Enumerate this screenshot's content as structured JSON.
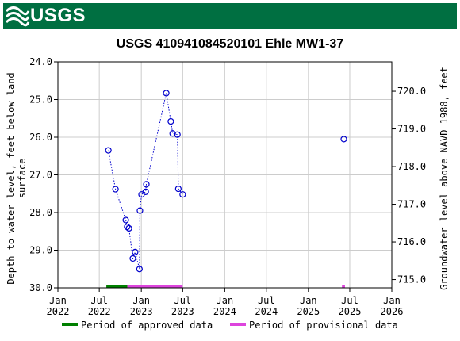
{
  "header": {
    "logo_text": "USGS",
    "brand_color": "#006f41"
  },
  "chart_data": {
    "type": "scatter",
    "title": "USGS 410941084520101 Ehle MW1-37",
    "ylabel_left": "Depth to water level, feet below land surface",
    "ylabel_left_lines": [
      "Depth to water level, feet below land",
      "surface"
    ],
    "ylabel_right": "Groundwater level above NAVD 1988, feet",
    "ylim_left": [
      30.0,
      24.0
    ],
    "ylim_right": [
      714.78,
      720.78
    ],
    "left_ticks": [
      "24.0",
      "25.0",
      "26.0",
      "27.0",
      "28.0",
      "29.0",
      "30.0"
    ],
    "right_ticks": [
      "715.0",
      "716.0",
      "717.0",
      "718.0",
      "719.0",
      "720.0"
    ],
    "x_ticks": [
      {
        "date": "2022-01-01",
        "line1": "Jan",
        "line2": "2022"
      },
      {
        "date": "2022-07-01",
        "line1": "Jul",
        "line2": "2022"
      },
      {
        "date": "2023-01-01",
        "line1": "Jan",
        "line2": "2023"
      },
      {
        "date": "2023-07-01",
        "line1": "Jul",
        "line2": "2023"
      },
      {
        "date": "2024-01-01",
        "line1": "Jan",
        "line2": "2024"
      },
      {
        "date": "2024-07-01",
        "line1": "Jul",
        "line2": "2024"
      },
      {
        "date": "2025-01-01",
        "line1": "Jan",
        "line2": "2025"
      },
      {
        "date": "2025-07-01",
        "line1": "Jul",
        "line2": "2025"
      },
      {
        "date": "2026-01-01",
        "line1": "Jan",
        "line2": "2026"
      }
    ],
    "xlim": [
      "2022-01-01",
      "2026-01-01"
    ],
    "grid": true,
    "series": [
      {
        "style": "dotted-line-with-open-circles",
        "color": "#0000cc",
        "points": [
          {
            "x": "2022-08-10",
            "y": 26.35
          },
          {
            "x": "2022-09-10",
            "y": 27.38
          },
          {
            "x": "2022-10-25",
            "y": 28.2
          },
          {
            "x": "2022-10-31",
            "y": 28.38
          },
          {
            "x": "2022-11-08",
            "y": 28.42
          },
          {
            "x": "2022-11-25",
            "y": 29.22
          },
          {
            "x": "2022-12-05",
            "y": 29.05
          },
          {
            "x": "2022-12-24",
            "y": 29.5
          },
          {
            "x": "2022-12-26",
            "y": 27.95
          },
          {
            "x": "2023-01-02",
            "y": 27.52
          },
          {
            "x": "2023-01-20",
            "y": 27.45
          },
          {
            "x": "2023-01-23",
            "y": 27.25
          },
          {
            "x": "2023-04-20",
            "y": 24.83
          },
          {
            "x": "2023-05-10",
            "y": 25.58
          },
          {
            "x": "2023-05-18",
            "y": 25.9
          },
          {
            "x": "2023-06-08",
            "y": 25.93
          },
          {
            "x": "2023-06-12",
            "y": 27.37
          },
          {
            "x": "2023-07-01",
            "y": 27.52
          }
        ]
      },
      {
        "style": "open-circles",
        "color": "#0000cc",
        "points": [
          {
            "x": "2025-06-05",
            "y": 26.05
          }
        ]
      }
    ],
    "periods": [
      {
        "type": "approved",
        "color": "#008000",
        "start": "2022-08-01",
        "end": "2022-11-01"
      },
      {
        "type": "provisional",
        "color": "#dd44dd",
        "start": "2022-11-01",
        "end": "2023-07-01"
      },
      {
        "type": "provisional",
        "color": "#dd44dd",
        "start": "2025-05-28",
        "end": "2025-06-10"
      }
    ],
    "legend": [
      {
        "label": "Period of approved data",
        "color": "#008000"
      },
      {
        "label": "Period of provisional data",
        "color": "#dd44dd"
      }
    ],
    "legend_position": "bottom"
  }
}
